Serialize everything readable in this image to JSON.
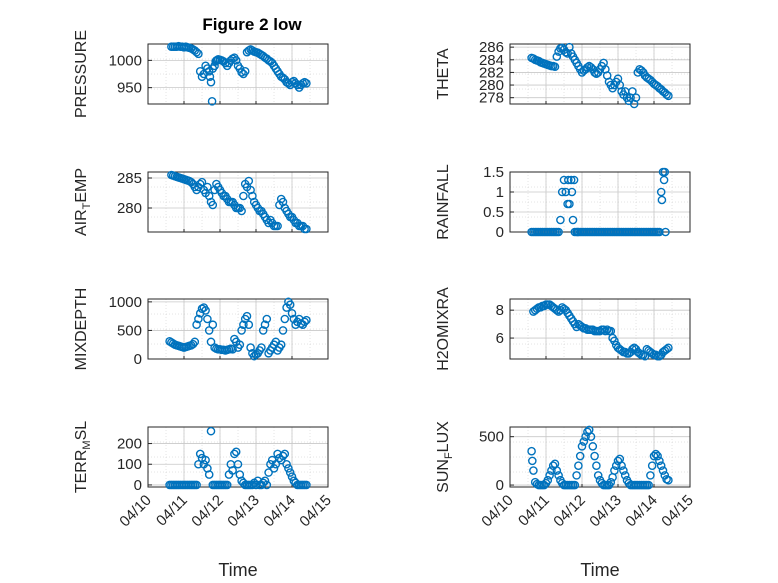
{
  "figure": {
    "title": "Figure 2 low"
  },
  "style": {
    "marker_color": "#0072BD",
    "axis_color": "#262626",
    "grid_color": "#c8c8c8"
  },
  "chart_data": [
    {
      "type": "scatter",
      "ylabel": "PRESSURE",
      "ylim": [
        920,
        1030
      ],
      "yticks": [
        950,
        1000
      ],
      "xlim": [
        0,
        5
      ],
      "xticks": [],
      "xticklabels": [],
      "grid": true,
      "x": [
        0.65,
        0.7,
        0.75,
        0.8,
        0.85,
        0.9,
        0.95,
        1.0,
        1.05,
        1.1,
        1.15,
        1.2,
        1.25,
        1.3,
        1.35,
        1.4,
        1.45,
        1.5,
        1.55,
        1.6,
        1.65,
        1.7,
        1.72,
        1.75,
        1.78,
        1.8,
        1.85,
        1.88,
        1.9,
        1.92,
        1.95,
        2.0,
        2.05,
        2.1,
        2.15,
        2.2,
        2.25,
        2.3,
        2.35,
        2.4,
        2.45,
        2.5,
        2.55,
        2.6,
        2.65,
        2.7,
        2.75,
        2.8,
        2.85,
        2.9,
        2.95,
        3.0,
        3.05,
        3.1,
        3.15,
        3.2,
        3.25,
        3.3,
        3.35,
        3.4,
        3.45,
        3.5,
        3.55,
        3.6,
        3.65,
        3.7,
        3.75,
        3.8,
        3.85,
        3.9,
        3.95,
        4.0,
        4.05,
        4.1,
        4.15,
        4.2,
        4.25,
        4.3,
        4.35,
        4.4
      ],
      "y": [
        1025,
        1025,
        1025,
        1025,
        1026,
        1025,
        1025,
        1024,
        1025,
        1024,
        1023,
        1022,
        1020,
        1018,
        1015,
        1012,
        980,
        970,
        975,
        990,
        985,
        980,
        970,
        960,
        925,
        985,
        990,
        998,
        1000,
        1000,
        1002,
        1001,
        1000,
        998,
        995,
        990,
        995,
        1000,
        1003,
        1005,
        1000,
        990,
        985,
        978,
        975,
        980,
        1015,
        1018,
        1020,
        1018,
        1016,
        1015,
        1014,
        1012,
        1010,
        1008,
        1005,
        1003,
        1000,
        998,
        995,
        990,
        985,
        980,
        975,
        970,
        968,
        965,
        960,
        958,
        955,
        960,
        962,
        958,
        955,
        950,
        955,
        958,
        960,
        958
      ]
    },
    {
      "type": "scatter",
      "ylabel": "THETA",
      "ylim": [
        277,
        286.5
      ],
      "yticks": [
        278,
        280,
        282,
        284,
        286
      ],
      "xlim": [
        0,
        5
      ],
      "xticks": [],
      "xticklabels": [],
      "grid": true,
      "x": [
        0.6,
        0.65,
        0.7,
        0.75,
        0.8,
        0.85,
        0.9,
        0.95,
        1.0,
        1.05,
        1.1,
        1.15,
        1.2,
        1.25,
        1.3,
        1.35,
        1.4,
        1.45,
        1.5,
        1.55,
        1.6,
        1.65,
        1.7,
        1.75,
        1.8,
        1.85,
        1.9,
        1.95,
        2.0,
        2.05,
        2.1,
        2.15,
        2.2,
        2.25,
        2.3,
        2.35,
        2.4,
        2.45,
        2.5,
        2.55,
        2.6,
        2.65,
        2.7,
        2.75,
        2.8,
        2.85,
        2.9,
        2.95,
        3.0,
        3.05,
        3.1,
        3.15,
        3.2,
        3.25,
        3.3,
        3.35,
        3.4,
        3.45,
        3.5,
        3.55,
        3.6,
        3.65,
        3.7,
        3.75,
        3.8,
        3.85,
        3.9,
        3.95,
        4.0,
        4.05,
        4.1,
        4.15,
        4.2,
        4.25,
        4.3,
        4.35,
        4.4
      ],
      "y": [
        284.3,
        284.2,
        284.0,
        283.9,
        283.8,
        283.6,
        283.5,
        283.4,
        283.3,
        283.2,
        283.1,
        283.0,
        283.0,
        282.9,
        284.5,
        285.3,
        285.8,
        285.9,
        285.6,
        285.2,
        285.0,
        286.0,
        285.0,
        284.5,
        284.0,
        283.5,
        283.0,
        282.5,
        282.0,
        282.3,
        282.5,
        282.8,
        283.0,
        282.8,
        282.5,
        282.0,
        281.8,
        282.0,
        282.5,
        283.0,
        283.5,
        282.5,
        281.5,
        280.5,
        280.0,
        279.5,
        280.0,
        280.5,
        281.0,
        280.0,
        279.0,
        278.5,
        279.0,
        278.0,
        277.5,
        278.0,
        279.0,
        277.0,
        278.0,
        282.0,
        282.5,
        282.3,
        282.0,
        281.5,
        281.2,
        281.0,
        280.8,
        280.5,
        280.2,
        280.0,
        279.8,
        279.5,
        279.3,
        279.0,
        278.8,
        278.5,
        278.3
      ]
    },
    {
      "type": "scatter",
      "ylabel": "AIR_TEMP",
      "ylim": [
        276,
        286
      ],
      "yticks": [
        280,
        285
      ],
      "xlim": [
        0,
        5
      ],
      "xticks": [],
      "xticklabels": [],
      "grid": true,
      "x": [
        0.65,
        0.7,
        0.75,
        0.8,
        0.85,
        0.9,
        0.95,
        1.0,
        1.05,
        1.1,
        1.15,
        1.2,
        1.25,
        1.3,
        1.35,
        1.4,
        1.45,
        1.5,
        1.55,
        1.6,
        1.65,
        1.7,
        1.75,
        1.8,
        1.85,
        1.9,
        1.95,
        2.0,
        2.05,
        2.1,
        2.15,
        2.2,
        2.25,
        2.3,
        2.35,
        2.4,
        2.45,
        2.5,
        2.55,
        2.6,
        2.65,
        2.7,
        2.75,
        2.8,
        2.85,
        2.9,
        2.95,
        3.0,
        3.05,
        3.1,
        3.15,
        3.2,
        3.25,
        3.3,
        3.35,
        3.4,
        3.45,
        3.5,
        3.55,
        3.6,
        3.65,
        3.7,
        3.75,
        3.8,
        3.85,
        3.9,
        3.95,
        4.0,
        4.05,
        4.1,
        4.15,
        4.2,
        4.25,
        4.3,
        4.35,
        4.4
      ],
      "y": [
        285.5,
        285.4,
        285.3,
        285.2,
        285.1,
        285.0,
        284.9,
        284.8,
        284.7,
        284.6,
        284.5,
        284.3,
        284.0,
        283.5,
        283.0,
        283.5,
        284.0,
        284.3,
        283.0,
        282.5,
        283.5,
        282.0,
        281.0,
        280.5,
        283.0,
        284.0,
        283.5,
        283.0,
        282.5,
        282.0,
        282.0,
        281.5,
        281.0,
        281.0,
        281.0,
        280.5,
        280.0,
        280.0,
        280.0,
        279.5,
        282.0,
        284.0,
        283.5,
        284.5,
        283.0,
        282.0,
        281.0,
        280.5,
        280.0,
        279.5,
        279.5,
        279.0,
        278.5,
        278.0,
        277.5,
        278.0,
        277.5,
        277.0,
        277.0,
        277.0,
        280.5,
        281.5,
        281.0,
        280.0,
        279.5,
        279.0,
        278.5,
        278.5,
        278.0,
        277.5,
        277.5,
        277.0,
        277.0,
        277.0,
        276.5,
        276.5
      ]
    },
    {
      "type": "scatter",
      "ylabel": "RAINFALL",
      "ylim": [
        0,
        1.5
      ],
      "yticks": [
        0,
        0.5,
        1,
        1.5
      ],
      "xlim": [
        0,
        5
      ],
      "xticks": [],
      "xticklabels": [],
      "grid": true,
      "x": [
        0.6,
        0.65,
        0.7,
        0.75,
        0.8,
        0.85,
        0.9,
        0.95,
        1.0,
        1.05,
        1.1,
        1.15,
        1.2,
        1.25,
        1.3,
        1.35,
        1.4,
        1.45,
        1.5,
        1.55,
        1.6,
        1.62,
        1.65,
        1.7,
        1.72,
        1.75,
        1.78,
        1.8,
        1.85,
        1.88,
        1.9,
        1.95,
        2.0,
        2.05,
        2.1,
        2.15,
        2.2,
        2.25,
        2.3,
        2.35,
        2.4,
        2.45,
        2.5,
        2.55,
        2.6,
        2.65,
        2.7,
        2.75,
        2.8,
        2.85,
        2.9,
        2.95,
        3.0,
        3.05,
        3.1,
        3.15,
        3.2,
        3.25,
        3.3,
        3.35,
        3.4,
        3.45,
        3.5,
        3.55,
        3.6,
        3.65,
        3.7,
        3.75,
        3.8,
        3.85,
        3.9,
        3.95,
        4.0,
        4.05,
        4.1,
        4.15,
        4.2,
        4.22,
        4.25,
        4.28,
        4.3,
        4.32
      ],
      "y": [
        0,
        0,
        0,
        0,
        0,
        0,
        0,
        0,
        0,
        0,
        0,
        0,
        0,
        0,
        0,
        0,
        0.3,
        1.0,
        1.3,
        1.0,
        0.7,
        1.3,
        0.7,
        1.3,
        1.0,
        0.3,
        1.3,
        0,
        0,
        0,
        0,
        0,
        0,
        0,
        0,
        0,
        0,
        0,
        0,
        0,
        0,
        0,
        0,
        0,
        0,
        0,
        0,
        0,
        0,
        0,
        0,
        0,
        0,
        0,
        0,
        0,
        0,
        0,
        0,
        0,
        0,
        0,
        0,
        0,
        0,
        0,
        0,
        0,
        0,
        0,
        0,
        0,
        0,
        0,
        0,
        0,
        1.0,
        0.8,
        1.5,
        1.3,
        1.5,
        0
      ]
    },
    {
      "type": "scatter",
      "ylabel": "MIXDEPTH",
      "ylim": [
        0,
        1050
      ],
      "yticks": [
        0,
        500,
        1000
      ],
      "xlim": [
        0,
        5
      ],
      "xticks": [],
      "xticklabels": [],
      "grid": true,
      "x": [
        0.6,
        0.65,
        0.7,
        0.75,
        0.8,
        0.85,
        0.9,
        0.95,
        1.0,
        1.05,
        1.1,
        1.15,
        1.2,
        1.25,
        1.3,
        1.35,
        1.4,
        1.45,
        1.5,
        1.55,
        1.6,
        1.65,
        1.7,
        1.75,
        1.8,
        1.85,
        1.9,
        1.95,
        2.0,
        2.05,
        2.1,
        2.15,
        2.2,
        2.25,
        2.3,
        2.35,
        2.4,
        2.45,
        2.5,
        2.55,
        2.6,
        2.65,
        2.7,
        2.75,
        2.8,
        2.85,
        2.9,
        2.95,
        3.0,
        3.05,
        3.1,
        3.15,
        3.2,
        3.25,
        3.3,
        3.35,
        3.4,
        3.45,
        3.5,
        3.55,
        3.6,
        3.65,
        3.7,
        3.75,
        3.8,
        3.85,
        3.9,
        3.95,
        4.0,
        4.05,
        4.1,
        4.15,
        4.2,
        4.25,
        4.3,
        4.35,
        4.4
      ],
      "y": [
        310,
        290,
        270,
        250,
        240,
        230,
        220,
        210,
        200,
        210,
        220,
        230,
        240,
        260,
        300,
        600,
        700,
        800,
        880,
        900,
        850,
        700,
        500,
        300,
        600,
        200,
        180,
        170,
        170,
        160,
        160,
        150,
        160,
        170,
        180,
        170,
        350,
        300,
        200,
        250,
        500,
        600,
        700,
        750,
        600,
        200,
        100,
        50,
        80,
        100,
        150,
        200,
        500,
        600,
        700,
        100,
        150,
        200,
        250,
        300,
        150,
        200,
        250,
        500,
        700,
        900,
        1000,
        950,
        800,
        700,
        600,
        650,
        700,
        620,
        600,
        650,
        680
      ]
    },
    {
      "type": "scatter",
      "ylabel": "H2OMIXRA",
      "ylim": [
        4.5,
        8.8
      ],
      "yticks": [
        6,
        8
      ],
      "xlim": [
        0,
        5
      ],
      "xticks": [],
      "xticklabels": [],
      "grid": true,
      "x": [
        0.65,
        0.7,
        0.75,
        0.8,
        0.85,
        0.9,
        0.95,
        1.0,
        1.05,
        1.1,
        1.15,
        1.2,
        1.25,
        1.3,
        1.35,
        1.4,
        1.45,
        1.5,
        1.55,
        1.6,
        1.65,
        1.7,
        1.75,
        1.8,
        1.85,
        1.9,
        1.95,
        2.0,
        2.05,
        2.1,
        2.15,
        2.2,
        2.25,
        2.3,
        2.35,
        2.4,
        2.45,
        2.5,
        2.55,
        2.6,
        2.65,
        2.7,
        2.75,
        2.8,
        2.85,
        2.9,
        2.95,
        3.0,
        3.05,
        3.1,
        3.15,
        3.2,
        3.25,
        3.3,
        3.35,
        3.4,
        3.45,
        3.5,
        3.55,
        3.6,
        3.65,
        3.7,
        3.75,
        3.8,
        3.85,
        3.9,
        3.95,
        4.0,
        4.05,
        4.1,
        4.15,
        4.2,
        4.25,
        4.3,
        4.35,
        4.4
      ],
      "y": [
        7.9,
        8.0,
        8.1,
        8.2,
        8.2,
        8.3,
        8.3,
        8.4,
        8.4,
        8.4,
        8.3,
        8.2,
        8.1,
        8.0,
        7.9,
        8.0,
        8.2,
        8.1,
        8.0,
        7.8,
        7.6,
        7.4,
        7.2,
        7.0,
        6.8,
        7.0,
        6.9,
        6.8,
        6.7,
        6.7,
        6.6,
        6.6,
        6.6,
        6.6,
        6.5,
        6.5,
        6.5,
        6.5,
        6.6,
        6.6,
        6.5,
        6.6,
        6.5,
        6.5,
        6.0,
        5.8,
        5.5,
        5.3,
        5.2,
        5.1,
        5.0,
        5.0,
        4.9,
        4.9,
        5.0,
        5.2,
        5.3,
        5.2,
        5.0,
        4.9,
        4.8,
        4.8,
        4.7,
        5.2,
        5.1,
        5.0,
        4.9,
        4.8,
        4.8,
        4.7,
        4.7,
        4.8,
        5.0,
        5.1,
        5.2,
        5.3
      ]
    },
    {
      "type": "scatter",
      "ylabel": "TERR_MSL",
      "ylim": [
        -10,
        280
      ],
      "yticks": [
        0,
        100,
        200
      ],
      "xlim": [
        0,
        5
      ],
      "xticks": [
        0,
        1,
        2,
        3,
        4,
        5
      ],
      "xticklabels": [
        "04/10",
        "04/11",
        "04/12",
        "04/13",
        "04/14",
        "04/15"
      ],
      "xlabel": "Time",
      "grid": true,
      "x": [
        0.6,
        0.65,
        0.7,
        0.75,
        0.8,
        0.85,
        0.9,
        0.95,
        1.0,
        1.05,
        1.1,
        1.15,
        1.2,
        1.25,
        1.3,
        1.35,
        1.4,
        1.45,
        1.5,
        1.55,
        1.6,
        1.65,
        1.7,
        1.75,
        1.8,
        1.85,
        1.9,
        1.95,
        2.0,
        2.05,
        2.1,
        2.15,
        2.2,
        2.25,
        2.3,
        2.35,
        2.4,
        2.45,
        2.5,
        2.55,
        2.6,
        2.65,
        2.7,
        2.75,
        2.8,
        2.85,
        2.9,
        2.95,
        3.0,
        3.05,
        3.1,
        3.15,
        3.2,
        3.25,
        3.3,
        3.35,
        3.4,
        3.45,
        3.5,
        3.55,
        3.6,
        3.65,
        3.7,
        3.75,
        3.8,
        3.85,
        3.9,
        3.95,
        4.0,
        4.05,
        4.1,
        4.15,
        4.2,
        4.25,
        4.3,
        4.35,
        4.4
      ],
      "y": [
        0,
        0,
        0,
        0,
        0,
        0,
        0,
        0,
        0,
        0,
        0,
        0,
        0,
        0,
        0,
        0,
        100,
        150,
        130,
        100,
        120,
        80,
        50,
        260,
        0,
        0,
        0,
        0,
        0,
        0,
        0,
        0,
        0,
        50,
        100,
        70,
        150,
        160,
        100,
        50,
        20,
        10,
        0,
        0,
        0,
        0,
        0,
        10,
        0,
        20,
        0,
        0,
        10,
        20,
        0,
        60,
        100,
        120,
        80,
        100,
        150,
        130,
        120,
        140,
        150,
        100,
        80,
        60,
        40,
        20,
        10,
        0,
        0,
        0,
        0,
        0,
        0
      ]
    },
    {
      "type": "scatter",
      "ylabel": "SUN_FLUX",
      "ylim": [
        -20,
        600
      ],
      "yticks": [
        0,
        500
      ],
      "xlim": [
        0,
        5
      ],
      "xticks": [
        0,
        1,
        2,
        3,
        4,
        5
      ],
      "xticklabels": [
        "04/10",
        "04/11",
        "04/12",
        "04/13",
        "04/14",
        "04/15"
      ],
      "xlabel": "Time",
      "grid": true,
      "x": [
        0.6,
        0.62,
        0.65,
        0.7,
        0.75,
        0.8,
        0.85,
        0.9,
        0.95,
        1.0,
        1.05,
        1.1,
        1.15,
        1.2,
        1.25,
        1.3,
        1.35,
        1.4,
        1.45,
        1.5,
        1.55,
        1.6,
        1.65,
        1.7,
        1.75,
        1.8,
        1.85,
        1.9,
        1.95,
        2.0,
        2.05,
        2.1,
        2.15,
        2.2,
        2.25,
        2.3,
        2.35,
        2.4,
        2.45,
        2.5,
        2.55,
        2.6,
        2.65,
        2.7,
        2.75,
        2.8,
        2.85,
        2.9,
        2.95,
        3.0,
        3.05,
        3.1,
        3.15,
        3.2,
        3.25,
        3.3,
        3.35,
        3.4,
        3.45,
        3.5,
        3.55,
        3.6,
        3.65,
        3.7,
        3.75,
        3.8,
        3.85,
        3.9,
        3.95,
        4.0,
        4.05,
        4.1,
        4.15,
        4.2,
        4.25,
        4.3,
        4.35,
        4.4
      ],
      "y": [
        350,
        250,
        150,
        30,
        10,
        0,
        0,
        0,
        0,
        20,
        50,
        100,
        150,
        200,
        220,
        150,
        100,
        50,
        20,
        0,
        0,
        0,
        0,
        0,
        0,
        0,
        100,
        200,
        300,
        400,
        450,
        500,
        550,
        570,
        500,
        400,
        300,
        200,
        100,
        50,
        20,
        0,
        0,
        0,
        0,
        30,
        80,
        150,
        200,
        250,
        270,
        200,
        150,
        100,
        50,
        20,
        0,
        0,
        0,
        0,
        0,
        0,
        0,
        0,
        0,
        0,
        0,
        100,
        200,
        300,
        320,
        300,
        250,
        200,
        150,
        100,
        60,
        50
      ]
    }
  ]
}
